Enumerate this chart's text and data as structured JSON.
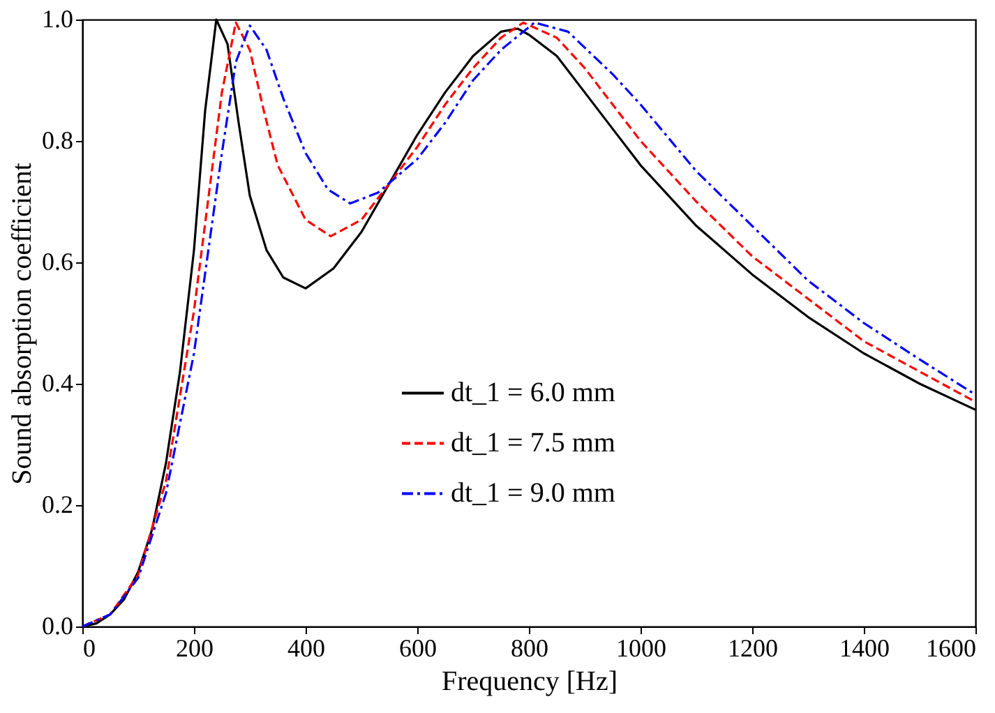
{
  "chart_data": {
    "type": "line",
    "xlabel": "Frequency [Hz]",
    "ylabel": "Sound absorption coefficient",
    "xlim": [
      0,
      1600
    ],
    "xticks": [
      0,
      200,
      400,
      600,
      800,
      1000,
      1200,
      1400,
      1600
    ],
    "ylim": [
      0,
      1.0
    ],
    "yticks": [
      {
        "value": 0,
        "label": "0.0"
      },
      0.2,
      0.4,
      0.6,
      0.8,
      {
        "value": 1,
        "label": "1.0"
      }
    ],
    "grid": false,
    "legend": "bottom",
    "marker": "none",
    "series": [
      {
        "name": "dt_1 = 6.0 mm",
        "color": "#000000",
        "line_style": "solid",
        "x": [
          0,
          25,
          50,
          75,
          100,
          125,
          150,
          175,
          200,
          220,
          240,
          260,
          280,
          300,
          330,
          360,
          400,
          450,
          500,
          550,
          600,
          650,
          700,
          750,
          780,
          800,
          850,
          900,
          950,
          1000,
          1100,
          1200,
          1300,
          1400,
          1500,
          1600
        ],
        "values": [
          0,
          0.005,
          0.02,
          0.045,
          0.09,
          0.16,
          0.27,
          0.42,
          0.62,
          0.85,
          1.0,
          0.96,
          0.83,
          0.71,
          0.62,
          0.575,
          0.557,
          0.59,
          0.65,
          0.73,
          0.81,
          0.88,
          0.94,
          0.98,
          0.985,
          0.975,
          0.94,
          0.88,
          0.82,
          0.76,
          0.66,
          0.58,
          0.51,
          0.45,
          0.4,
          0.357
        ]
      },
      {
        "name": "dt_1 = 7.5 mm",
        "color": "#ff0000",
        "line_style": "dashed",
        "x": [
          0,
          50,
          100,
          150,
          200,
          225,
          250,
          275,
          300,
          325,
          350,
          400,
          445,
          500,
          550,
          600,
          650,
          700,
          750,
          790,
          850,
          900,
          1000,
          1100,
          1200,
          1300,
          1400,
          1500,
          1600
        ],
        "values": [
          0,
          0.02,
          0.085,
          0.24,
          0.52,
          0.7,
          0.88,
          0.995,
          0.95,
          0.85,
          0.76,
          0.67,
          0.643,
          0.67,
          0.73,
          0.79,
          0.86,
          0.92,
          0.97,
          0.995,
          0.97,
          0.92,
          0.8,
          0.7,
          0.61,
          0.54,
          0.47,
          0.42,
          0.37
        ]
      },
      {
        "name": "dt_1 = 9.0 mm",
        "color": "#0000ff",
        "line_style": "dashdot",
        "x": [
          0,
          50,
          100,
          150,
          200,
          250,
          275,
          300,
          330,
          360,
          400,
          440,
          480,
          530,
          600,
          650,
          700,
          750,
          810,
          870,
          950,
          1000,
          1100,
          1200,
          1300,
          1400,
          1500,
          1600
        ],
        "values": [
          0,
          0.02,
          0.08,
          0.22,
          0.45,
          0.78,
          0.93,
          0.99,
          0.95,
          0.87,
          0.78,
          0.72,
          0.697,
          0.715,
          0.77,
          0.83,
          0.9,
          0.95,
          0.995,
          0.98,
          0.91,
          0.86,
          0.75,
          0.66,
          0.57,
          0.5,
          0.44,
          0.382
        ]
      }
    ]
  }
}
